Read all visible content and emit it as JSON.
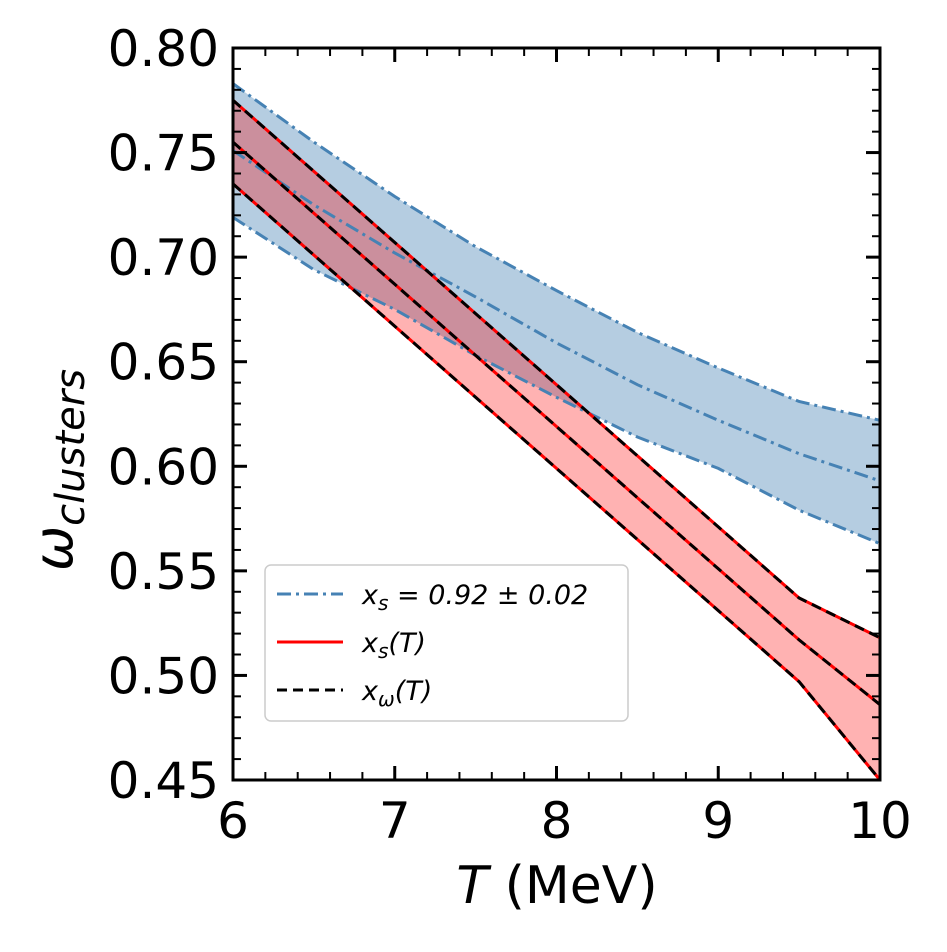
{
  "chart_data": {
    "type": "line",
    "title": "",
    "xlabel": {
      "symbol": "T",
      "unit": "(MeV)"
    },
    "ylabel": {
      "symbol": "ω",
      "subscript": "clusters"
    },
    "xlim": [
      6,
      10
    ],
    "ylim": [
      0.45,
      0.8
    ],
    "x_ticks": [
      "6",
      "7",
      "8",
      "9",
      "10"
    ],
    "y_ticks": [
      "0.45",
      "0.50",
      "0.55",
      "0.60",
      "0.65",
      "0.70",
      "0.75",
      "0.80"
    ],
    "grid": false,
    "legend_position": "lower-left",
    "legend": [
      {
        "label_html": "x<tspan font-size='20' dy='6'>s</tspan><tspan dy='-6'> = 0.92 ± 0.02</tspan>",
        "style": "dashdot",
        "color": "#4682b4"
      },
      {
        "label_html": "x<tspan font-size='20' dy='6'>s</tspan><tspan dy='-6'>(T)</tspan>",
        "style": "solid",
        "color": "#ff0000"
      },
      {
        "label_html": "x<tspan font-size='20' dy='6'>ω</tspan><tspan dy='-6'>(T)</tspan>",
        "style": "dashed",
        "color": "#000000"
      }
    ],
    "x": [
      6,
      6.5,
      7,
      7.5,
      8,
      8.5,
      9,
      9.5,
      10
    ],
    "series": [
      {
        "style": "dashdot",
        "color": "#4682b4",
        "band": "upper",
        "values": [
          0.783,
          0.755,
          0.729,
          0.705,
          0.684,
          0.664,
          0.647,
          0.631,
          0.622
        ]
      },
      {
        "style": "dashdot",
        "color": "#4682b4",
        "band": "center",
        "values": [
          0.751,
          0.725,
          0.702,
          0.681,
          0.659,
          0.639,
          0.622,
          0.606,
          0.593
        ]
      },
      {
        "style": "dashdot",
        "color": "#4682b4",
        "band": "lower",
        "values": [
          0.719,
          0.694,
          0.675,
          0.653,
          0.633,
          0.614,
          0.599,
          0.579,
          0.563
        ]
      },
      {
        "style": "solid",
        "color": "#ff0000",
        "band": "upper",
        "values": [
          0.775,
          0.741,
          0.707,
          0.673,
          0.639,
          0.605,
          0.571,
          0.537,
          0.518
        ]
      },
      {
        "style": "solid",
        "color": "#ff0000",
        "band": "center",
        "values": [
          0.755,
          0.721,
          0.687,
          0.653,
          0.619,
          0.585,
          0.551,
          0.517,
          0.486
        ]
      },
      {
        "style": "solid",
        "color": "#ff0000",
        "band": "lower",
        "values": [
          0.735,
          0.701,
          0.667,
          0.633,
          0.599,
          0.565,
          0.531,
          0.497,
          0.45
        ]
      },
      {
        "style": "dashed",
        "color": "#000000",
        "band": "upper",
        "values": [
          0.775,
          0.741,
          0.707,
          0.673,
          0.639,
          0.605,
          0.571,
          0.537,
          0.518
        ]
      },
      {
        "style": "dashed",
        "color": "#000000",
        "band": "center",
        "values": [
          0.755,
          0.721,
          0.687,
          0.653,
          0.619,
          0.585,
          0.551,
          0.517,
          0.486
        ]
      },
      {
        "style": "dashed",
        "color": "#000000",
        "band": "lower",
        "values": [
          0.735,
          0.701,
          0.667,
          0.633,
          0.599,
          0.565,
          0.531,
          0.497,
          0.45
        ]
      }
    ],
    "fills": [
      {
        "between": [
          0,
          2
        ],
        "color": "#4682b4",
        "opacity": 0.4
      },
      {
        "between": [
          3,
          5
        ],
        "color": "#ff0000",
        "opacity": 0.3
      }
    ]
  }
}
